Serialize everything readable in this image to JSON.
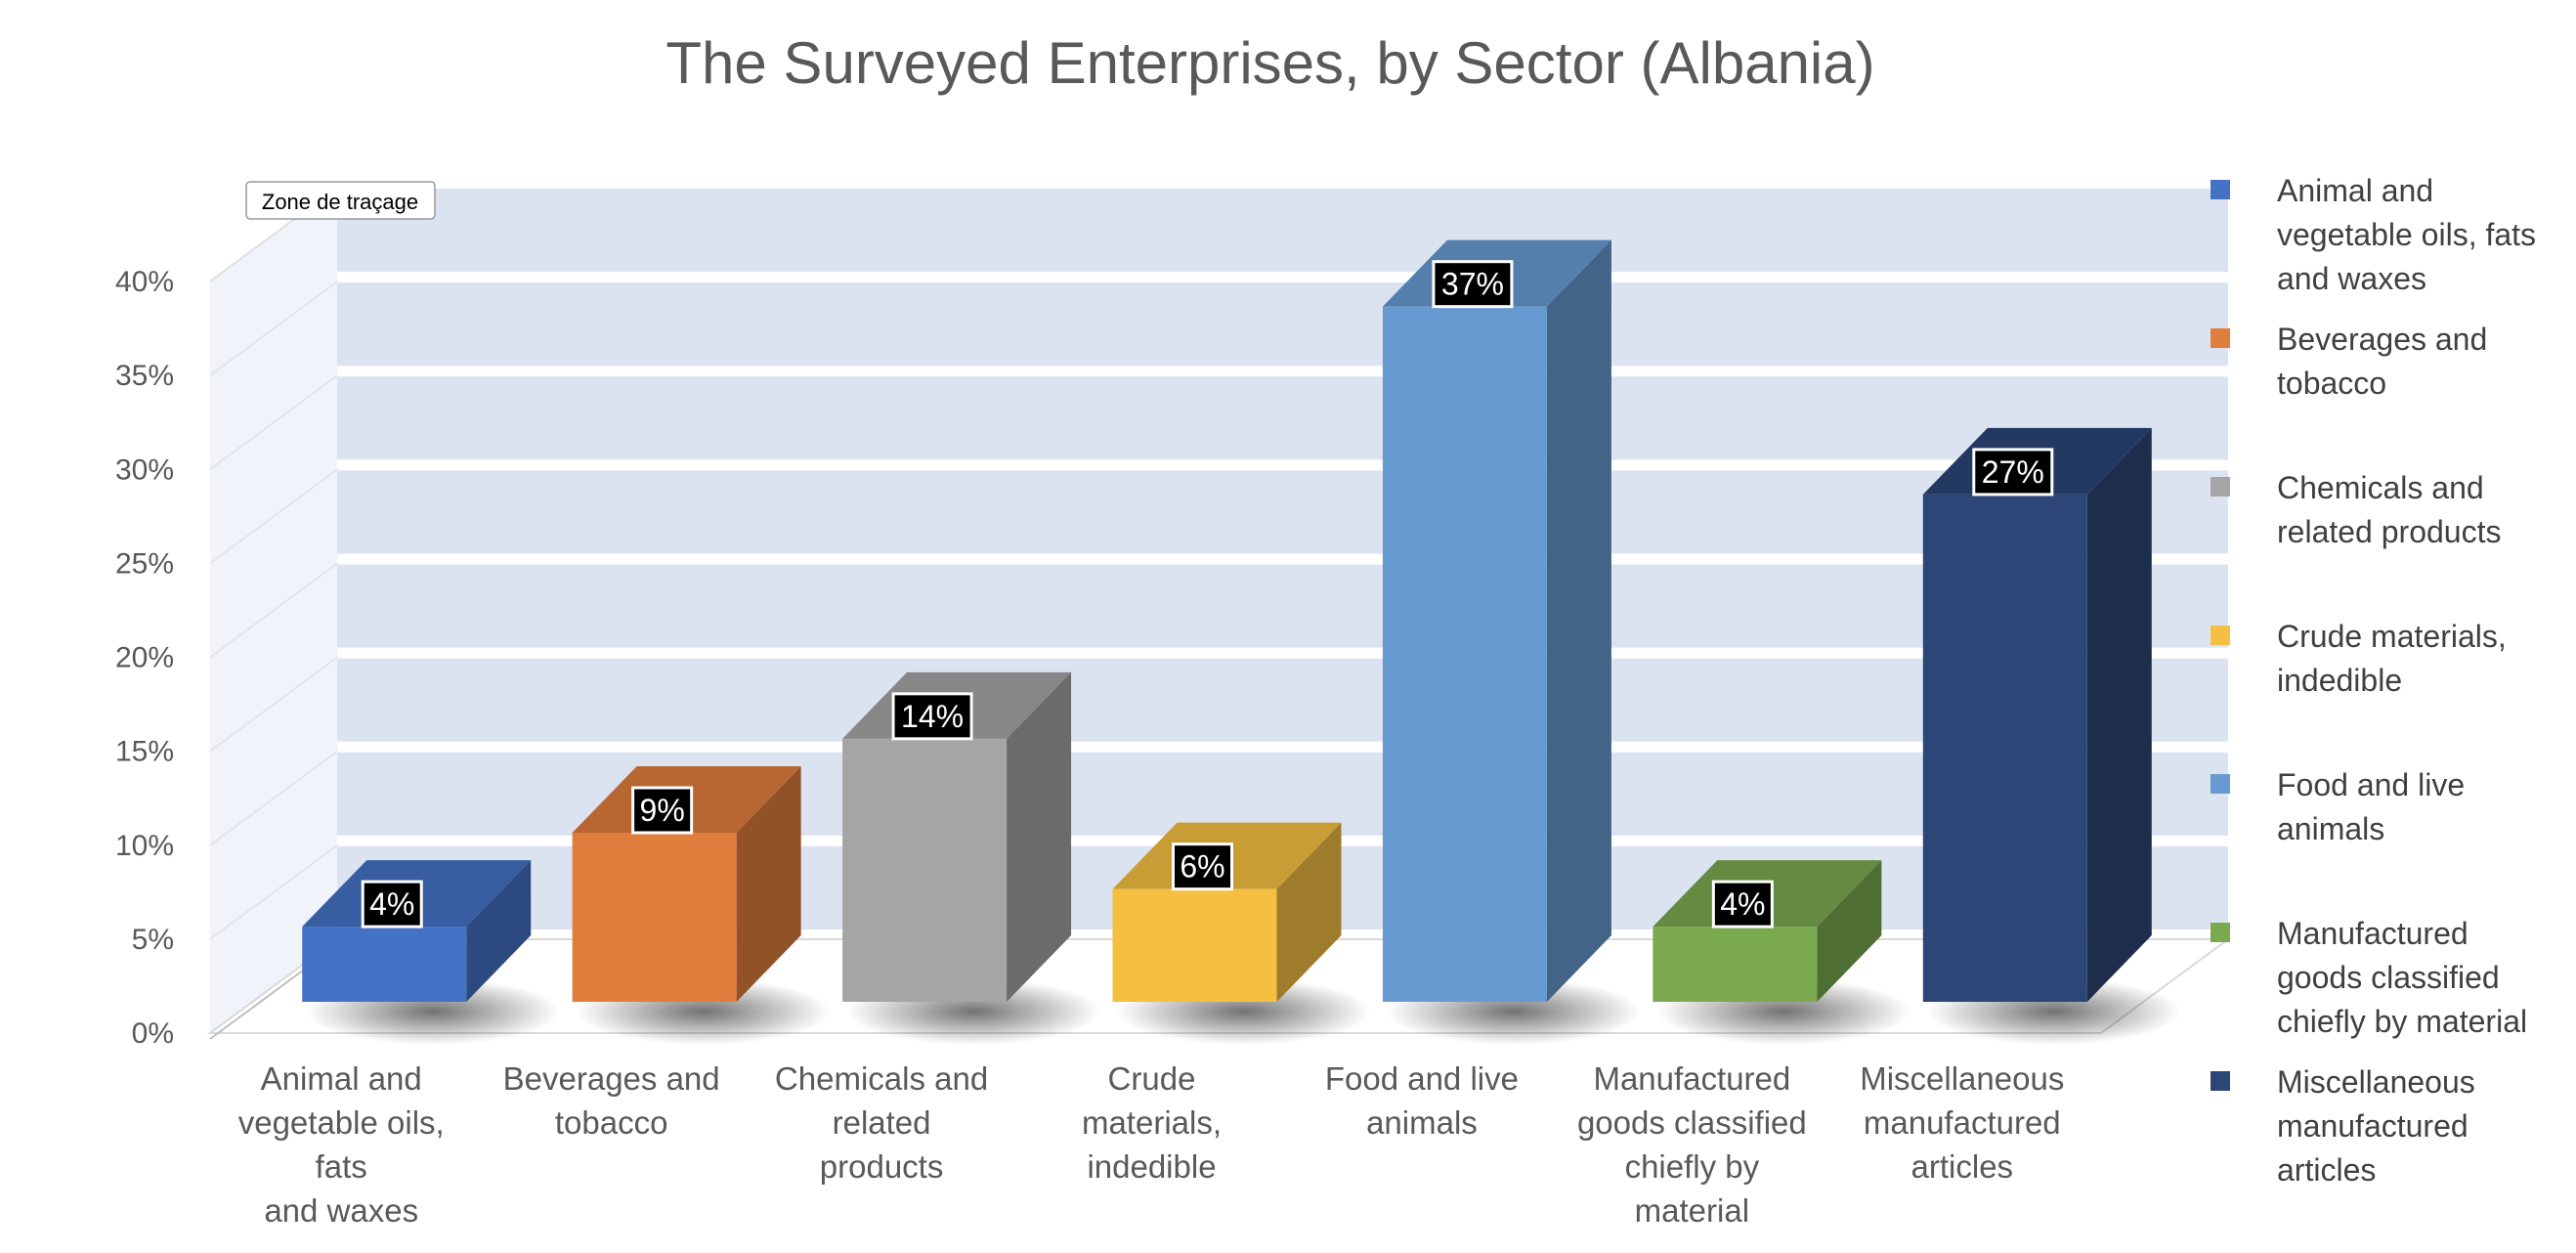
{
  "tooltip": "Zone de traçage",
  "chart_data": {
    "type": "bar",
    "title": "The Surveyed Enterprises, by Sector (Albania)",
    "xlabel": "",
    "ylabel": "",
    "ylim": [
      0,
      40
    ],
    "y_ticks": [
      "0%",
      "5%",
      "10%",
      "15%",
      "20%",
      "25%",
      "30%",
      "35%",
      "40%"
    ],
    "grid": true,
    "legend_position": "right",
    "categories": [
      [
        "Animal and",
        "vegetable oils,",
        "fats",
        "and waxes"
      ],
      [
        "Beverages and",
        "tobacco"
      ],
      [
        "Chemicals and",
        "related",
        "products"
      ],
      [
        "Crude",
        "materials,",
        "indedible"
      ],
      [
        "Food and live",
        "animals"
      ],
      [
        "Manufactured",
        "goods classified",
        "chiefly by",
        "material"
      ],
      [
        "Miscellaneous",
        "manufactured",
        "articles"
      ]
    ],
    "values": [
      4,
      9,
      14,
      6,
      37,
      4,
      27
    ],
    "data_labels": [
      "4%",
      "9%",
      "14%",
      "6%",
      "37%",
      "4%",
      "27%"
    ],
    "colors": [
      "#4472c4",
      "#e07e3e",
      "#a5a5a5",
      "#f5bf42",
      "#679ad0",
      "#7aa94f",
      "#2c4677"
    ],
    "legend": [
      [
        "Animal and",
        "vegetable oils, fats",
        "and waxes"
      ],
      [
        "Beverages and",
        "tobacco"
      ],
      [
        "Chemicals and",
        "related products"
      ],
      [
        "Crude materials,",
        "indedible"
      ],
      [
        "Food and live",
        "animals"
      ],
      [
        "Manufactured",
        "goods classified",
        "chiefly by material"
      ],
      [
        "Miscellaneous",
        "manufactured",
        "articles"
      ]
    ]
  }
}
